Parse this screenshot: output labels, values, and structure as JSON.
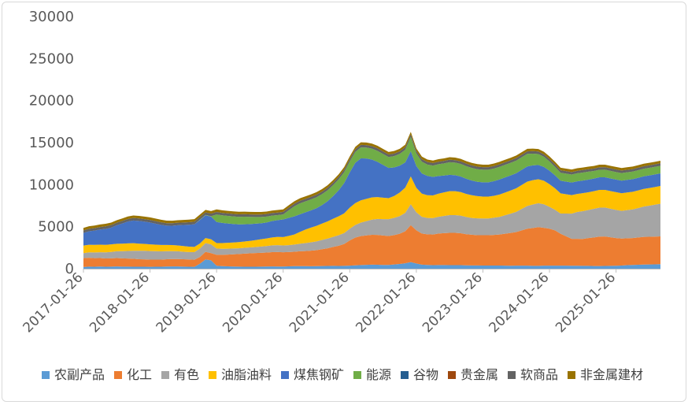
{
  "chart_data": {
    "type": "area",
    "stacked": true,
    "title": "",
    "xlabel": "",
    "ylabel": "",
    "ylim": [
      0,
      30000
    ],
    "yticks": [
      0,
      5000,
      10000,
      15000,
      20000,
      25000,
      30000
    ],
    "x_start": "2017-01-26",
    "x_step": "monthly",
    "xtick_labels": [
      "2017-01-26",
      "2018-01-26",
      "2019-01-26",
      "2020-01-26",
      "2021-01-26",
      "2022-01-26",
      "2023-01-26",
      "2024-01-26",
      "2025-01-26"
    ],
    "xtick_indices": [
      0,
      12,
      24,
      36,
      48,
      60,
      72,
      84,
      96
    ],
    "n_points": 105,
    "legend_position": "bottom",
    "series": [
      {
        "name": "农副产品",
        "color": "#5b9bd5",
        "values": [
          200,
          250,
          230,
          260,
          240,
          250,
          270,
          250,
          250,
          240,
          230,
          230,
          220,
          230,
          240,
          260,
          270,
          270,
          250,
          240,
          220,
          600,
          1100,
          1000,
          350,
          300,
          280,
          260,
          250,
          240,
          230,
          240,
          250,
          260,
          270,
          260,
          260,
          280,
          300,
          310,
          300,
          290,
          300,
          320,
          330,
          340,
          330,
          340,
          360,
          400,
          430,
          460,
          480,
          470,
          450,
          440,
          500,
          560,
          650,
          780,
          620,
          480,
          440,
          420,
          430,
          430,
          420,
          420,
          420,
          400,
          390,
          390,
          380,
          380,
          370,
          370,
          360,
          350,
          360,
          360,
          360,
          340,
          340,
          360,
          360,
          360,
          360,
          360,
          350,
          350,
          340,
          340,
          320,
          320,
          330,
          340,
          350,
          380,
          420,
          450,
          470,
          490,
          500,
          520,
          540
        ]
      },
      {
        "name": "化工",
        "color": "#ed7d31",
        "values": [
          1050,
          1050,
          1020,
          1000,
          980,
          980,
          1000,
          980,
          960,
          940,
          900,
          880,
          860,
          850,
          840,
          860,
          880,
          880,
          870,
          860,
          850,
          800,
          900,
          850,
          1300,
          1350,
          1400,
          1450,
          1500,
          1550,
          1600,
          1620,
          1640,
          1660,
          1700,
          1720,
          1700,
          1700,
          1720,
          1760,
          1800,
          1850,
          1900,
          2000,
          2100,
          2250,
          2400,
          2600,
          3000,
          3300,
          3450,
          3500,
          3550,
          3550,
          3500,
          3450,
          3500,
          3600,
          3800,
          4400,
          3950,
          3700,
          3650,
          3650,
          3750,
          3800,
          3850,
          3850,
          3800,
          3700,
          3650,
          3600,
          3600,
          3600,
          3650,
          3700,
          3800,
          3900,
          4000,
          4200,
          4400,
          4500,
          4600,
          4500,
          4400,
          4200,
          3800,
          3500,
          3200,
          3200,
          3200,
          3300,
          3400,
          3500,
          3500,
          3400,
          3300,
          3200,
          3200,
          3200,
          3250,
          3300,
          3300,
          3300,
          3300
        ]
      },
      {
        "name": "有色",
        "color": "#a5a5a5",
        "values": [
          600,
          650,
          680,
          700,
          720,
          760,
          800,
          850,
          900,
          950,
          1000,
          1020,
          1020,
          1000,
          980,
          960,
          940,
          920,
          900,
          880,
          900,
          1000,
          1050,
          1050,
          750,
          720,
          700,
          690,
          680,
          690,
          700,
          720,
          750,
          780,
          810,
          820,
          800,
          820,
          850,
          900,
          950,
          1000,
          1050,
          1100,
          1150,
          1200,
          1250,
          1300,
          1400,
          1500,
          1600,
          1700,
          1800,
          1900,
          1950,
          2000,
          2050,
          2100,
          2200,
          2500,
          2150,
          2000,
          1950,
          1950,
          2000,
          2050,
          2100,
          2100,
          2100,
          2050,
          2000,
          2000,
          2000,
          2000,
          2050,
          2100,
          2200,
          2300,
          2400,
          2550,
          2700,
          2800,
          2850,
          2800,
          2600,
          2450,
          2400,
          2700,
          3000,
          3200,
          3300,
          3350,
          3400,
          3450,
          3450,
          3400,
          3350,
          3300,
          3350,
          3400,
          3500,
          3600,
          3700,
          3800,
          3900
        ]
      },
      {
        "name": "油脂油料",
        "color": "#ffc000",
        "values": [
          900,
          900,
          900,
          900,
          900,
          900,
          900,
          900,
          900,
          900,
          850,
          820,
          800,
          780,
          760,
          740,
          720,
          700,
          680,
          650,
          620,
          600,
          600,
          600,
          650,
          680,
          700,
          720,
          740,
          760,
          780,
          820,
          860,
          900,
          940,
          980,
          1000,
          1100,
          1200,
          1400,
          1600,
          1750,
          1850,
          1950,
          2050,
          2150,
          2250,
          2350,
          2500,
          2600,
          2650,
          2650,
          2650,
          2600,
          2550,
          2500,
          2600,
          2800,
          3000,
          3300,
          2900,
          2750,
          2700,
          2700,
          2750,
          2800,
          2850,
          2850,
          2800,
          2750,
          2700,
          2650,
          2600,
          2600,
          2600,
          2650,
          2700,
          2750,
          2800,
          2850,
          2900,
          2900,
          2850,
          2800,
          2700,
          2550,
          2400,
          2300,
          2200,
          2150,
          2150,
          2100,
          2100,
          2100,
          2100,
          2100,
          2100,
          2100,
          2100,
          2100,
          2100,
          2100,
          2100,
          2100,
          2100
        ]
      },
      {
        "name": "煤焦钢矿",
        "color": "#4472c4",
        "values": [
          1500,
          1600,
          1700,
          1800,
          1900,
          2000,
          2200,
          2400,
          2600,
          2700,
          2700,
          2650,
          2600,
          2500,
          2400,
          2300,
          2300,
          2400,
          2500,
          2600,
          2700,
          2800,
          2700,
          2700,
          2500,
          2400,
          2300,
          2200,
          2100,
          2050,
          2000,
          1950,
          1900,
          1900,
          1950,
          2000,
          2100,
          2150,
          2150,
          2100,
          2050,
          2050,
          2100,
          2200,
          2400,
          2700,
          3100,
          3600,
          4200,
          4800,
          5000,
          4800,
          4500,
          4200,
          3900,
          3600,
          3400,
          3200,
          3000,
          3000,
          2600,
          2400,
          2300,
          2200,
          2100,
          2000,
          1950,
          1900,
          1850,
          1800,
          1750,
          1700,
          1700,
          1700,
          1750,
          1800,
          1800,
          1800,
          1800,
          1800,
          1800,
          1750,
          1700,
          1650,
          1600,
          1550,
          1500,
          1500,
          1500,
          1500,
          1500,
          1500,
          1500,
          1500,
          1500,
          1500,
          1500,
          1500,
          1500,
          1500,
          1500,
          1500,
          1500,
          1500,
          1500
        ]
      },
      {
        "name": "能源",
        "color": "#70ad47",
        "values": [
          0,
          0,
          0,
          0,
          0,
          0,
          0,
          0,
          0,
          0,
          0,
          0,
          0,
          0,
          0,
          0,
          0,
          0,
          0,
          0,
          0,
          50,
          50,
          50,
          900,
          900,
          900,
          900,
          900,
          900,
          850,
          800,
          750,
          700,
          650,
          600,
          600,
          900,
          1200,
          1300,
          1300,
          1300,
          1300,
          1300,
          1300,
          1300,
          1300,
          1300,
          1300,
          1300,
          1300,
          1300,
          1300,
          1300,
          1300,
          1300,
          1350,
          1400,
          1500,
          1700,
          1500,
          1400,
          1350,
          1350,
          1400,
          1450,
          1500,
          1500,
          1500,
          1500,
          1500,
          1500,
          1500,
          1500,
          1500,
          1500,
          1500,
          1500,
          1500,
          1500,
          1500,
          1400,
          1300,
          1200,
          1100,
          1000,
          950,
          950,
          950,
          950,
          950,
          950,
          900,
          900,
          900,
          900,
          900,
          900,
          900,
          900,
          900,
          900,
          900,
          900,
          900
        ]
      },
      {
        "name": "谷物",
        "color": "#255e91",
        "values": [
          0,
          0,
          0,
          0,
          0,
          0,
          0,
          0,
          0,
          0,
          0,
          0,
          0,
          0,
          0,
          0,
          0,
          0,
          0,
          0,
          0,
          0,
          0,
          0,
          0,
          0,
          0,
          0,
          0,
          0,
          0,
          0,
          0,
          0,
          0,
          0,
          0,
          0,
          0,
          0,
          0,
          0,
          0,
          0,
          0,
          0,
          0,
          0,
          0,
          0,
          0,
          0,
          0,
          0,
          0,
          0,
          0,
          0,
          0,
          0,
          0,
          0,
          0,
          0,
          0,
          0,
          0,
          0,
          0,
          0,
          0,
          0,
          0,
          0,
          0,
          0,
          0,
          0,
          0,
          0,
          0,
          0,
          0,
          0,
          0,
          0,
          0,
          0,
          0,
          0,
          0,
          0,
          0,
          0,
          0,
          0,
          0,
          0,
          0,
          0,
          0,
          0,
          0,
          0,
          0
        ]
      },
      {
        "name": "贵金属",
        "color": "#9e480e",
        "values": [
          0,
          0,
          0,
          0,
          0,
          0,
          0,
          0,
          0,
          0,
          0,
          0,
          0,
          0,
          0,
          0,
          0,
          0,
          0,
          0,
          0,
          0,
          0,
          0,
          0,
          0,
          0,
          0,
          0,
          0,
          0,
          0,
          0,
          0,
          0,
          0,
          0,
          0,
          0,
          0,
          0,
          0,
          0,
          0,
          0,
          0,
          0,
          0,
          0,
          0,
          0,
          0,
          0,
          0,
          0,
          0,
          0,
          0,
          0,
          0,
          0,
          0,
          0,
          0,
          0,
          0,
          0,
          0,
          0,
          0,
          0,
          0,
          0,
          0,
          0,
          0,
          0,
          0,
          0,
          0,
          0,
          0,
          0,
          0,
          0,
          0,
          0,
          0,
          0,
          0,
          0,
          0,
          0,
          0,
          0,
          0,
          0,
          0,
          0,
          0,
          0,
          0,
          0,
          0,
          0
        ]
      },
      {
        "name": "软商品",
        "color": "#636363",
        "values": [
          300,
          300,
          300,
          300,
          300,
          300,
          300,
          300,
          300,
          300,
          300,
          300,
          300,
          300,
          300,
          300,
          300,
          300,
          300,
          300,
          300,
          300,
          300,
          300,
          300,
          300,
          300,
          300,
          300,
          300,
          300,
          300,
          300,
          300,
          300,
          300,
          300,
          300,
          300,
          300,
          300,
          300,
          300,
          300,
          300,
          300,
          300,
          300,
          300,
          300,
          300,
          300,
          300,
          300,
          300,
          300,
          300,
          300,
          300,
          300,
          300,
          300,
          300,
          300,
          300,
          300,
          300,
          300,
          300,
          300,
          300,
          300,
          300,
          300,
          300,
          300,
          300,
          300,
          300,
          300,
          300,
          300,
          300,
          300,
          300,
          300,
          300,
          300,
          300,
          300,
          300,
          300,
          300,
          300,
          300,
          300,
          300,
          300,
          300,
          300,
          300,
          300,
          300,
          300,
          300
        ]
      },
      {
        "name": "非金属建材",
        "color": "#997300",
        "values": [
          300,
          300,
          300,
          300,
          300,
          300,
          300,
          300,
          300,
          300,
          300,
          300,
          300,
          300,
          300,
          300,
          300,
          300,
          300,
          300,
          300,
          300,
          300,
          300,
          300,
          300,
          300,
          300,
          300,
          300,
          300,
          300,
          300,
          300,
          300,
          300,
          300,
          300,
          300,
          300,
          300,
          300,
          300,
          300,
          300,
          300,
          300,
          300,
          300,
          300,
          300,
          300,
          300,
          300,
          300,
          300,
          300,
          300,
          300,
          300,
          300,
          300,
          300,
          300,
          300,
          300,
          300,
          300,
          300,
          300,
          300,
          300,
          300,
          300,
          300,
          300,
          300,
          300,
          300,
          300,
          300,
          300,
          300,
          300,
          300,
          300,
          300,
          300,
          300,
          300,
          300,
          300,
          300,
          300,
          300,
          300,
          300,
          300,
          300,
          300,
          300,
          300,
          300,
          300,
          300
        ]
      }
    ]
  }
}
